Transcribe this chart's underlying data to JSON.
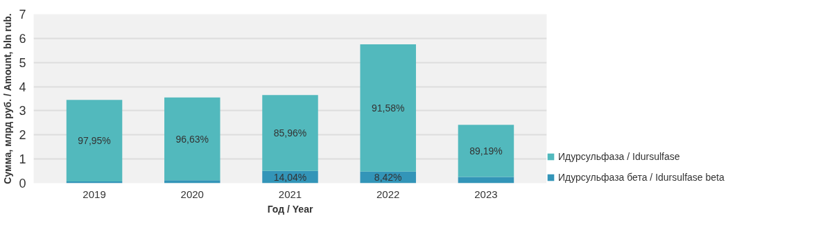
{
  "chart_data": {
    "type": "bar",
    "stacked": true,
    "xlabel": "Год / Year",
    "ylabel": "Сумма, млрд руб. / Amount, bln rub.",
    "categories": [
      "2019",
      "2020",
      "2021",
      "2022",
      "2023"
    ],
    "series": [
      {
        "name": "Идурсульфаза бета / Idursulfase beta",
        "color": "#3395b8",
        "values": [
          0.07,
          0.12,
          0.51,
          0.48,
          0.26
        ]
      },
      {
        "name": "Идурсульфаза / Idursulfase",
        "color": "#52b9bd",
        "values": [
          3.38,
          3.43,
          3.14,
          5.27,
          2.16
        ]
      }
    ],
    "annotations": [
      "97,95%",
      "96,63%",
      "85,96%",
      "14,04%",
      "91,58%",
      "8,42%",
      "89,19%"
    ],
    "ylim": [
      0,
      7
    ],
    "yticks": [
      0,
      1,
      2,
      3,
      4,
      5,
      6,
      7
    ],
    "grid": "y",
    "legend": "right"
  }
}
